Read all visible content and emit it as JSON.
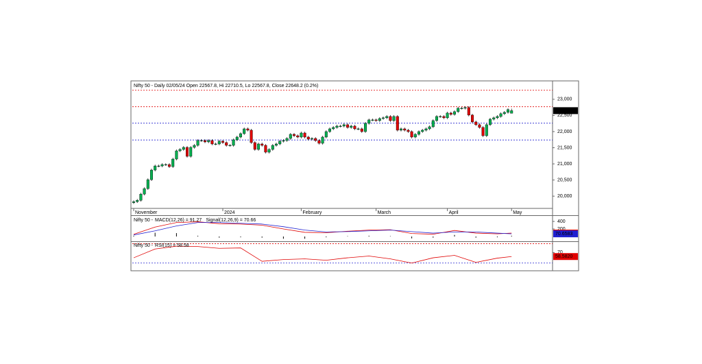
{
  "chart_data": [
    {
      "type": "candlestick",
      "title": "Nifty 50 - Daily 02/05/24 Open 22567.8, Hi 22710.5, Lo 22567.8, Close 22648.2 (0.2%)",
      "categories": [
        "November",
        null,
        null,
        null,
        null,
        null,
        null,
        null,
        null,
        null,
        null,
        null,
        null,
        null,
        null,
        null,
        null,
        null,
        null,
        null,
        null,
        null,
        null,
        null,
        null,
        "2024",
        null,
        null,
        null,
        null,
        null,
        null,
        null,
        null,
        null,
        null,
        null,
        null,
        null,
        null,
        null,
        null,
        null,
        null,
        null,
        null,
        null,
        "February",
        null,
        null,
        null,
        null,
        null,
        null,
        null,
        null,
        null,
        null,
        null,
        null,
        null,
        null,
        null,
        null,
        null,
        null,
        null,
        null,
        "March",
        null,
        null,
        null,
        null,
        null,
        null,
        null,
        null,
        null,
        null,
        null,
        null,
        null,
        null,
        null,
        null,
        null,
        null,
        null,
        "April",
        null,
        null,
        null,
        null,
        null,
        null,
        null,
        null,
        null,
        null,
        null,
        null,
        null,
        null,
        null,
        null,
        null,
        "May"
      ],
      "open": [
        19800,
        19830,
        19872,
        20064,
        20234,
        20511,
        20809,
        20936,
        20936,
        20979,
        20979,
        20915,
        21149,
        21404,
        21447,
        21511,
        21234,
        21511,
        21574,
        21723,
        21723,
        21681,
        21723,
        21617,
        21617,
        21702,
        21660,
        21574,
        21574,
        21745,
        21830,
        21936,
        22085,
        22043,
        21660,
        21447,
        21617,
        21574,
        21362,
        21447,
        21574,
        21617,
        21702,
        21723,
        21787,
        21915,
        21872,
        21830,
        21957,
        21830,
        21766,
        21787,
        21723,
        21638,
        21830,
        22000,
        22085,
        22128,
        22170,
        22170,
        22213,
        22128,
        22170,
        22085,
        22085,
        22000,
        22255,
        22362,
        22362,
        22340,
        22404,
        22426,
        22468,
        22340,
        22468,
        22043,
        22085,
        22043,
        22000,
        21830,
        21915,
        22000,
        22043,
        22085,
        22149,
        22340,
        22468,
        22468,
        22426,
        22574,
        22532,
        22617,
        22723,
        22723,
        22745,
        22511,
        22298,
        22213,
        22128,
        21872,
        22213,
        22383,
        22426,
        22468,
        22553,
        22596,
        22567.8
      ],
      "high": [
        19870,
        19912,
        20104,
        20274,
        20551,
        20849,
        20976,
        20976,
        21019,
        21019,
        21019,
        21189,
        21444,
        21487,
        21551,
        21551,
        21551,
        21614,
        21763,
        21763,
        21763,
        21763,
        21763,
        21657,
        21742,
        21742,
        21700,
        21614,
        21785,
        21870,
        21976,
        22125,
        22125,
        22083,
        21700,
        21657,
        21657,
        21614,
        21487,
        21614,
        21657,
        21742,
        21763,
        21827,
        21955,
        21955,
        21912,
        21997,
        21997,
        21870,
        21827,
        21827,
        21763,
        21870,
        22040,
        22125,
        22168,
        22210,
        22210,
        22253,
        22253,
        22210,
        22210,
        22125,
        22125,
        22295,
        22402,
        22402,
        22402,
        22444,
        22466,
        22508,
        22508,
        22508,
        22508,
        22125,
        22125,
        22083,
        22040,
        21955,
        22040,
        22083,
        22125,
        22189,
        22380,
        22508,
        22508,
        22508,
        22614,
        22614,
        22657,
        22763,
        22763,
        22785,
        22785,
        22551,
        22338,
        22253,
        22168,
        22253,
        22423,
        22466,
        22508,
        22593,
        22636,
        22721,
        22710.5
      ],
      "low": [
        19760,
        19790,
        19832,
        20024,
        20194,
        20471,
        20769,
        20896,
        20896,
        20939,
        20875,
        20875,
        21109,
        21364,
        21407,
        21194,
        21194,
        21471,
        21534,
        21683,
        21641,
        21641,
        21577,
        21577,
        21577,
        21620,
        21534,
        21534,
        21534,
        21705,
        21790,
        21896,
        22003,
        21620,
        21407,
        21407,
        21534,
        21322,
        21322,
        21407,
        21534,
        21577,
        21662,
        21683,
        21747,
        21832,
        21790,
        21790,
        21790,
        21726,
        21726,
        21683,
        21598,
        21598,
        21790,
        21960,
        22045,
        22088,
        22130,
        22130,
        22088,
        22088,
        22045,
        22045,
        21960,
        21960,
        22215,
        22322,
        22300,
        22300,
        22364,
        22386,
        22300,
        22300,
        22003,
        22003,
        22003,
        21960,
        21790,
        21790,
        21875,
        21960,
        22003,
        22045,
        22109,
        22300,
        22428,
        22386,
        22386,
        22492,
        22492,
        22577,
        22683,
        22683,
        22471,
        22258,
        22173,
        22088,
        21832,
        21832,
        22173,
        22343,
        22386,
        22428,
        22513,
        22556,
        22567.8
      ],
      "close": [
        19830,
        19872,
        20064,
        20234,
        20511,
        20809,
        20936,
        20936,
        20979,
        20979,
        20915,
        21149,
        21404,
        21447,
        21511,
        21234,
        21511,
        21574,
        21723,
        21723,
        21681,
        21723,
        21617,
        21617,
        21702,
        21660,
        21574,
        21574,
        21745,
        21830,
        21936,
        22085,
        22043,
        21660,
        21447,
        21617,
        21574,
        21362,
        21447,
        21574,
        21617,
        21702,
        21723,
        21787,
        21915,
        21872,
        21830,
        21957,
        21830,
        21766,
        21787,
        21723,
        21638,
        21830,
        22000,
        22085,
        22128,
        22170,
        22170,
        22213,
        22128,
        22170,
        22085,
        22085,
        22000,
        22255,
        22362,
        22362,
        22340,
        22404,
        22426,
        22468,
        22340,
        22468,
        22043,
        22085,
        22043,
        22000,
        21830,
        21915,
        22000,
        22043,
        22085,
        22149,
        22340,
        22468,
        22468,
        22426,
        22574,
        22532,
        22617,
        22723,
        22723,
        22745,
        22511,
        22298,
        22213,
        22128,
        21872,
        22213,
        22383,
        22426,
        22468,
        22553,
        22596,
        22681,
        22648.2
      ],
      "last_close_label": "22,648.2",
      "up_color": "#00b050",
      "down_color": "#e00000",
      "ylim": [
        19430,
        23570
      ],
      "yticks": [
        {
          "value": 20000,
          "label": "20,000"
        },
        {
          "value": 20500,
          "label": "20,500"
        },
        {
          "value": 21000,
          "label": "21,000"
        },
        {
          "value": 21500,
          "label": "21,500"
        },
        {
          "value": 22000,
          "label": "22,000"
        },
        {
          "value": 22500,
          "label": "22,500"
        },
        {
          "value": 23000,
          "label": "23,000"
        }
      ],
      "levels": [
        {
          "value": 23280,
          "color": "#e00000"
        },
        {
          "value": 22770,
          "color": "#e00000"
        },
        {
          "value": 22260,
          "color": "#2020d0"
        },
        {
          "value": 21740,
          "color": "#2020d0"
        }
      ]
    },
    {
      "type": "line",
      "title": "Nifty 50 -",
      "x": [
        0,
        6,
        12,
        18,
        24,
        30,
        36,
        42,
        48,
        54,
        60,
        66,
        72,
        78,
        84,
        90,
        96,
        102,
        106
      ],
      "series": [
        {
          "name": "MACD(12,26) = 91.27",
          "color": "#e00000",
          "last_label": "91.27",
          "values": [
            60,
            250,
            370,
            390,
            340,
            330,
            300,
            200,
            110,
            100,
            140,
            170,
            180,
            80,
            60,
            160,
            90,
            70,
            91.27
          ]
        },
        {
          "name": "Signal(12,26,9) = 70.66",
          "color": "#2020d0",
          "last_label": "70.6583",
          "values": [
            40,
            150,
            280,
            370,
            370,
            350,
            330,
            260,
            170,
            120,
            130,
            150,
            170,
            130,
            90,
            120,
            120,
            90,
            70.66
          ]
        }
      ],
      "histogram": [
        20,
        100,
        90,
        20,
        -30,
        -20,
        -30,
        -60,
        -60,
        -20,
        10,
        20,
        10,
        -50,
        -30,
        40,
        -30,
        -20,
        20.61
      ],
      "ylim": [
        -127,
        527
      ],
      "yticks": [
        200,
        400
      ]
    },
    {
      "type": "line",
      "title": "Nifty 50 -",
      "x": [
        0,
        6,
        12,
        18,
        24,
        30,
        36,
        42,
        48,
        54,
        60,
        66,
        72,
        78,
        84,
        90,
        96,
        102,
        106
      ],
      "series": [
        {
          "name": "RSI(15) = 58.58",
          "color": "#e00000",
          "last_label": "58.5820",
          "values": [
            55,
            80,
            88,
            87,
            82,
            83,
            45,
            50,
            52,
            48,
            55,
            60,
            52,
            40,
            55,
            62,
            42,
            54,
            58.58
          ]
        }
      ],
      "ylim": [
        20,
        100
      ],
      "yticks": [
        70
      ],
      "levels": [
        {
          "value": 95,
          "color": "#e00000"
        },
        {
          "value": 40,
          "color": "#2020d0"
        }
      ]
    }
  ]
}
